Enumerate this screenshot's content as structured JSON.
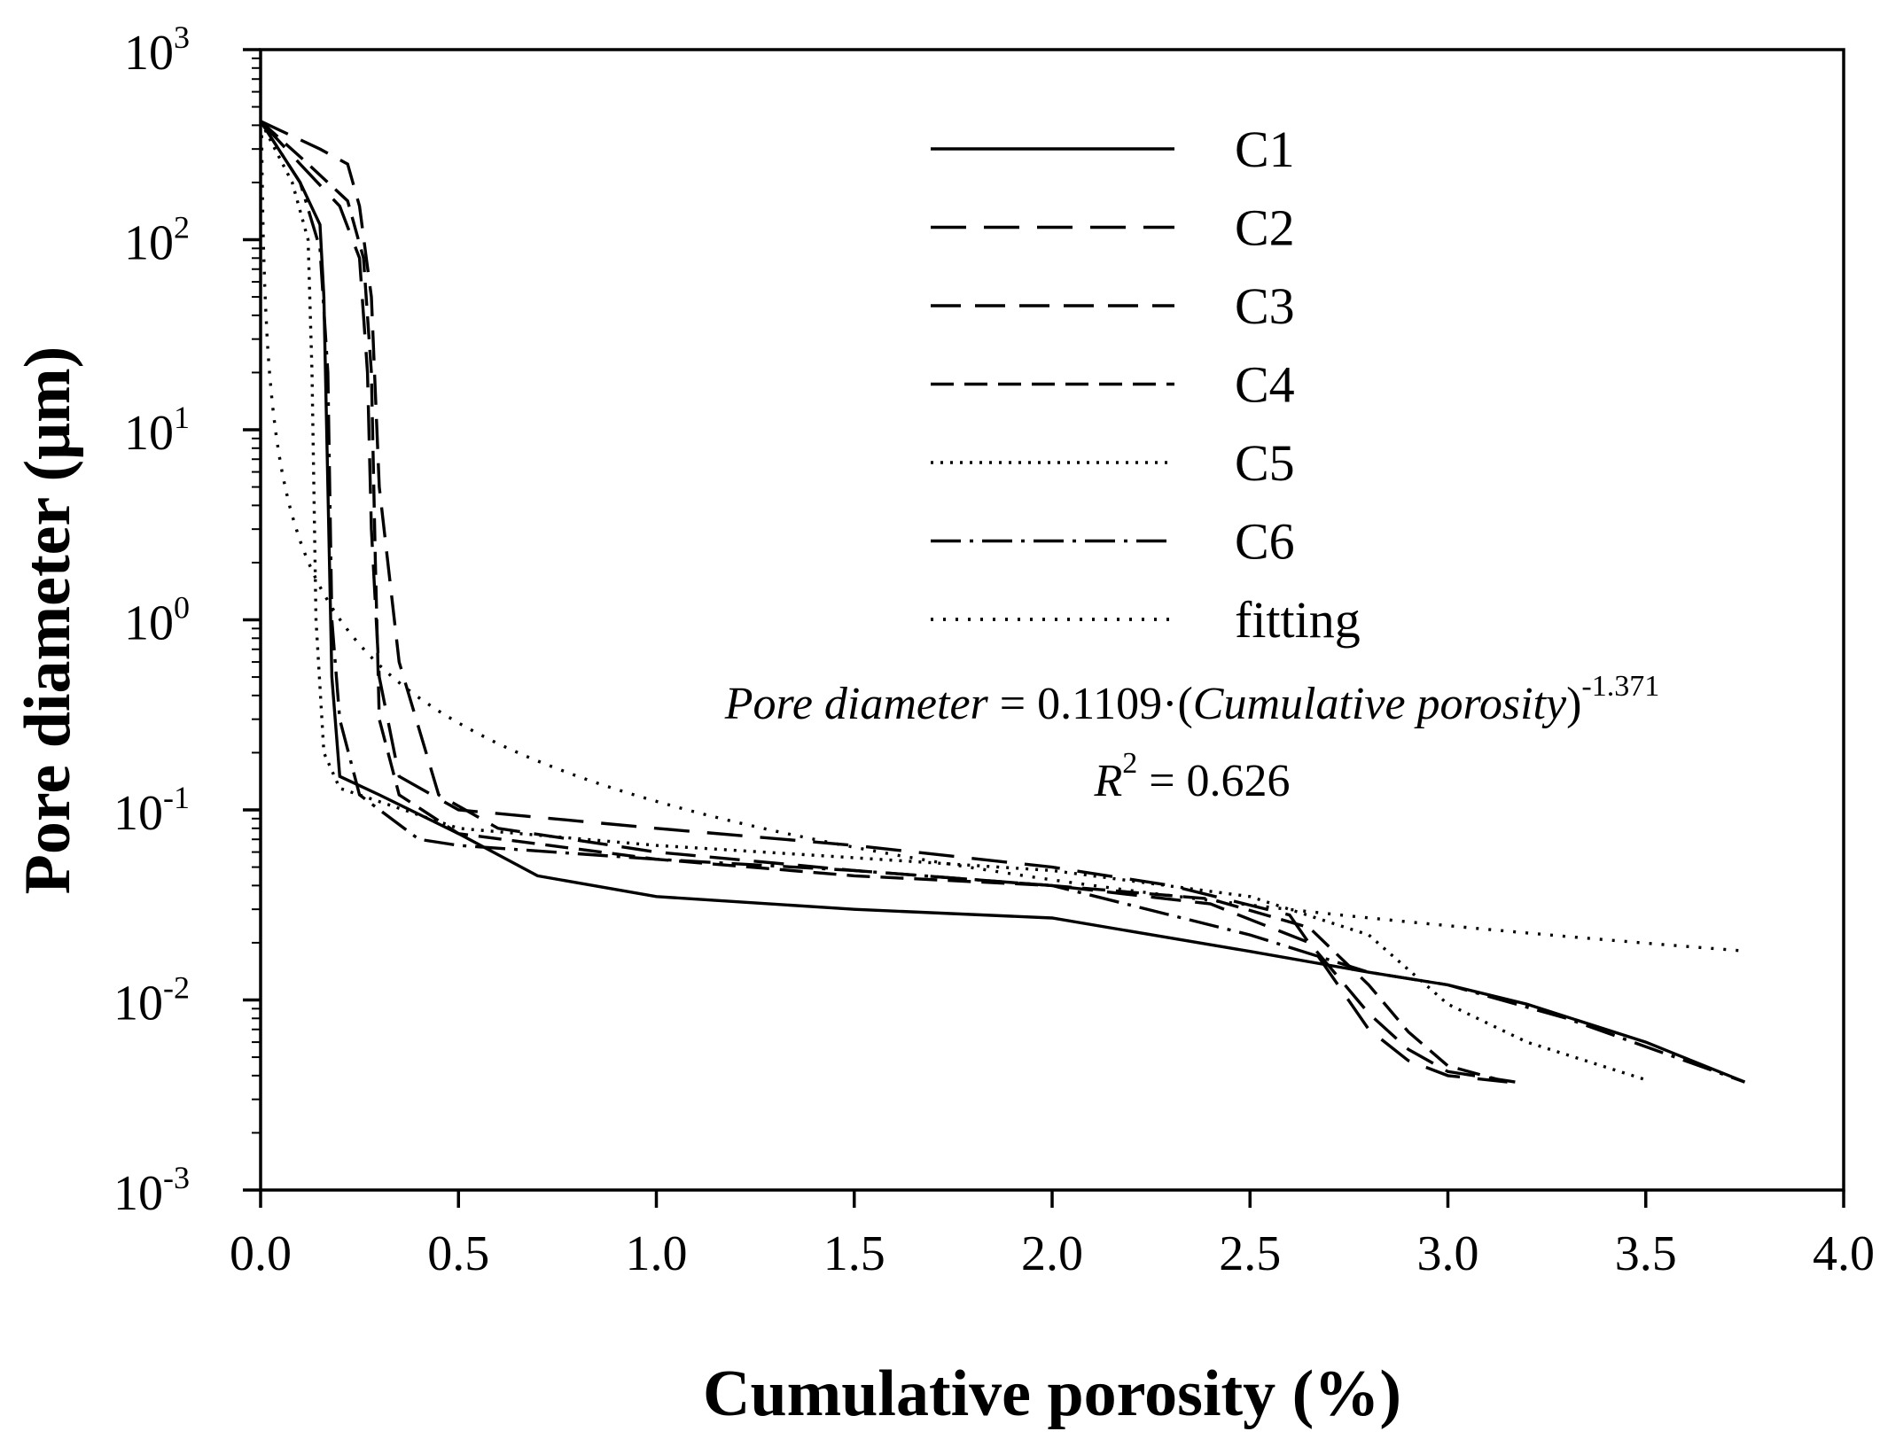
{
  "chart_data": {
    "type": "line",
    "title": "",
    "xlabel": "Cumulative porosity (%)",
    "ylabel": "Pore diameter (μm)",
    "xlim": [
      0.0,
      4.0
    ],
    "ylim_log10": [
      -3,
      3
    ],
    "x_ticks": [
      "0.0",
      "0.5",
      "1.0",
      "1.5",
      "2.0",
      "2.5",
      "3.0",
      "3.5",
      "4.0"
    ],
    "y_ticks": [
      {
        "base": "10",
        "exp": "3"
      },
      {
        "base": "10",
        "exp": "2"
      },
      {
        "base": "10",
        "exp": "1"
      },
      {
        "base": "10",
        "exp": "0"
      },
      {
        "base": "10",
        "exp": "-1"
      },
      {
        "base": "10",
        "exp": "-2"
      },
      {
        "base": "10",
        "exp": "-3"
      }
    ],
    "legend_position": "top-right",
    "series": [
      {
        "name": "C1",
        "dash": "",
        "points": [
          [
            0.0,
            420
          ],
          [
            0.1,
            200
          ],
          [
            0.15,
            120
          ],
          [
            0.16,
            50
          ],
          [
            0.17,
            5
          ],
          [
            0.18,
            0.5
          ],
          [
            0.2,
            0.15
          ],
          [
            0.3,
            0.12
          ],
          [
            0.5,
            0.075
          ],
          [
            0.7,
            0.045
          ],
          [
            1.0,
            0.035
          ],
          [
            1.5,
            0.03
          ],
          [
            2.0,
            0.027
          ],
          [
            2.5,
            0.018
          ],
          [
            2.8,
            0.014
          ],
          [
            3.0,
            0.012
          ],
          [
            3.2,
            0.0095
          ],
          [
            3.5,
            0.006
          ],
          [
            3.75,
            0.0037
          ]
        ]
      },
      {
        "name": "C2",
        "dash": "40,20",
        "points": [
          [
            0.0,
            420
          ],
          [
            0.1,
            250
          ],
          [
            0.2,
            150
          ],
          [
            0.25,
            80
          ],
          [
            0.27,
            20
          ],
          [
            0.28,
            3
          ],
          [
            0.3,
            0.5
          ],
          [
            0.35,
            0.15
          ],
          [
            0.5,
            0.1
          ],
          [
            1.0,
            0.08
          ],
          [
            1.5,
            0.065
          ],
          [
            2.0,
            0.05
          ],
          [
            2.3,
            0.04
          ],
          [
            2.6,
            0.028
          ],
          [
            2.7,
            0.014
          ],
          [
            2.8,
            0.007
          ],
          [
            2.9,
            0.0048
          ],
          [
            3.0,
            0.004
          ],
          [
            3.15,
            0.0037
          ]
        ]
      },
      {
        "name": "C3",
        "dash": "34,16",
        "points": [
          [
            0.0,
            420
          ],
          [
            0.15,
            300
          ],
          [
            0.22,
            250
          ],
          [
            0.25,
            150
          ],
          [
            0.28,
            50
          ],
          [
            0.3,
            5
          ],
          [
            0.35,
            0.6
          ],
          [
            0.45,
            0.12
          ],
          [
            0.6,
            0.08
          ],
          [
            1.0,
            0.06
          ],
          [
            1.5,
            0.048
          ],
          [
            2.0,
            0.04
          ],
          [
            2.4,
            0.032
          ],
          [
            2.65,
            0.02
          ],
          [
            2.8,
            0.0085
          ],
          [
            2.9,
            0.0055
          ],
          [
            3.0,
            0.0042
          ],
          [
            3.17,
            0.0037
          ]
        ]
      },
      {
        "name": "C4",
        "dash": "26,12",
        "points": [
          [
            0.0,
            420
          ],
          [
            0.12,
            250
          ],
          [
            0.22,
            160
          ],
          [
            0.26,
            80
          ],
          [
            0.28,
            20
          ],
          [
            0.29,
            2
          ],
          [
            0.3,
            0.3
          ],
          [
            0.35,
            0.12
          ],
          [
            0.5,
            0.075
          ],
          [
            1.0,
            0.055
          ],
          [
            1.5,
            0.045
          ],
          [
            2.0,
            0.04
          ],
          [
            2.4,
            0.034
          ],
          [
            2.65,
            0.024
          ],
          [
            2.8,
            0.012
          ],
          [
            2.9,
            0.0068
          ],
          [
            3.0,
            0.0045
          ],
          [
            3.15,
            0.0037
          ]
        ]
      },
      {
        "name": "C5",
        "dash": "3,8",
        "points": [
          [
            0.0,
            420
          ],
          [
            0.08,
            200
          ],
          [
            0.12,
            100
          ],
          [
            0.13,
            20
          ],
          [
            0.14,
            1
          ],
          [
            0.16,
            0.2
          ],
          [
            0.2,
            0.13
          ],
          [
            0.5,
            0.08
          ],
          [
            1.0,
            0.065
          ],
          [
            1.5,
            0.056
          ],
          [
            2.0,
            0.048
          ],
          [
            2.5,
            0.035
          ],
          [
            2.8,
            0.022
          ],
          [
            3.0,
            0.0095
          ],
          [
            3.2,
            0.006
          ],
          [
            3.5,
            0.0038
          ]
        ]
      },
      {
        "name": "C6",
        "dash": "34,10,4,10",
        "points": [
          [
            0.0,
            420
          ],
          [
            0.1,
            200
          ],
          [
            0.15,
            90
          ],
          [
            0.17,
            20
          ],
          [
            0.18,
            1
          ],
          [
            0.2,
            0.3
          ],
          [
            0.25,
            0.12
          ],
          [
            0.4,
            0.07
          ],
          [
            0.5,
            0.065
          ],
          [
            1.0,
            0.055
          ],
          [
            1.5,
            0.048
          ],
          [
            2.0,
            0.04
          ],
          [
            2.5,
            0.022
          ],
          [
            2.8,
            0.014
          ],
          [
            3.0,
            0.012
          ],
          [
            3.3,
            0.008
          ],
          [
            3.75,
            0.0037
          ]
        ]
      },
      {
        "name": "fitting",
        "dash": "3,11",
        "fit": {
          "a": 0.1109,
          "b": -1.371,
          "x_min": 0.002,
          "x_max": 3.75
        }
      }
    ],
    "annotations": {
      "equation": {
        "lhs": "Pore diameter",
        "eq": " = 0.1109·(",
        "arg": "Cumulative porosity",
        "close": ")",
        "exponent": "-1.371"
      },
      "r2": {
        "symbol": "R",
        "sup": "2",
        "value": " = 0.626"
      }
    }
  }
}
